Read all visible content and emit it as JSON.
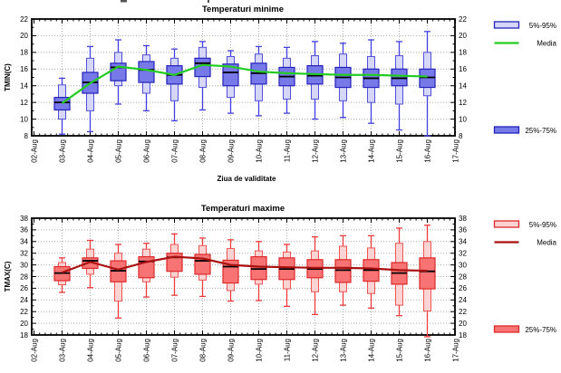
{
  "page": {
    "background": "#ffffff"
  },
  "chart_data": [
    {
      "type": "boxplot",
      "title": "Temperaturi minime",
      "ylabel": "TMIN(C)",
      "xlabel": "Ziua de validitate",
      "ylim": [
        8,
        22
      ],
      "ytick_step": 2,
      "grid": true,
      "legend_position": "right",
      "x_axis_labels": [
        "02-Aug",
        "03-Aug",
        "04-Aug",
        "05-Aug",
        "06-Aug",
        "07-Aug",
        "08-Aug",
        "09-Aug",
        "10-Aug",
        "11-Aug",
        "12-Aug",
        "13-Aug",
        "14-Aug",
        "15-Aug",
        "16-Aug",
        "17-Aug"
      ],
      "legend": {
        "outer_box": "5%-95%",
        "mean_line": "Media",
        "inner_box": "25%-75%"
      },
      "colors": {
        "title": "#1a1aee",
        "outer_fill": "#d6d6f8",
        "outer_edge": "#5151d8",
        "inner_fill": "#7879e8",
        "inner_edge": "#2323bb",
        "whisker": "#4040e0",
        "median": "#000000",
        "mean": "#22cc22"
      },
      "boxes": [
        {
          "date": "03-Aug",
          "whisker_low": 8.2,
          "p5": 10.0,
          "p25": 11.1,
          "median": 12.0,
          "p75": 12.6,
          "p95": 14.1,
          "whisker_high": 14.9,
          "mean": 11.9
        },
        {
          "date": "04-Aug",
          "whisker_low": 8.5,
          "p5": 11.0,
          "p25": 13.1,
          "median": 14.4,
          "p75": 15.6,
          "p95": 17.3,
          "whisker_high": 18.7,
          "mean": 14.3
        },
        {
          "date": "05-Aug",
          "whisker_low": 11.8,
          "p5": 14.0,
          "p25": 14.6,
          "median": 16.2,
          "p75": 16.7,
          "p95": 18.0,
          "whisker_high": 19.5,
          "mean": 16.3
        },
        {
          "date": "06-Aug",
          "whisker_low": 11.0,
          "p5": 13.1,
          "p25": 14.4,
          "median": 15.9,
          "p75": 16.9,
          "p95": 17.7,
          "whisker_high": 18.8,
          "mean": 15.9
        },
        {
          "date": "07-Aug",
          "whisker_low": 9.8,
          "p5": 12.2,
          "p25": 14.2,
          "median": 15.3,
          "p75": 16.4,
          "p95": 17.3,
          "whisker_high": 18.4,
          "mean": 15.3
        },
        {
          "date": "08-Aug",
          "whisker_low": 11.1,
          "p5": 13.8,
          "p25": 15.1,
          "median": 16.7,
          "p75": 17.3,
          "p95": 18.6,
          "whisker_high": 19.3,
          "mean": 16.5
        },
        {
          "date": "09-Aug",
          "whisker_low": 10.7,
          "p5": 12.6,
          "p25": 14.0,
          "median": 15.6,
          "p75": 16.6,
          "p95": 17.5,
          "whisker_high": 18.2,
          "mean": 16.3
        },
        {
          "date": "10-Aug",
          "whisker_low": 10.4,
          "p5": 12.2,
          "p25": 14.2,
          "median": 15.5,
          "p75": 16.7,
          "p95": 17.8,
          "whisker_high": 18.7,
          "mean": 15.7
        },
        {
          "date": "11-Aug",
          "whisker_low": 10.7,
          "p5": 12.4,
          "p25": 14.0,
          "median": 15.1,
          "p75": 16.2,
          "p95": 17.3,
          "whisker_high": 18.6,
          "mean": 15.5
        },
        {
          "date": "12-Aug",
          "whisker_low": 10.0,
          "p5": 12.4,
          "p25": 14.2,
          "median": 15.2,
          "p75": 16.4,
          "p95": 17.6,
          "whisker_high": 19.3,
          "mean": 15.4
        },
        {
          "date": "13-Aug",
          "whisker_low": 10.2,
          "p5": 12.2,
          "p25": 13.8,
          "median": 15.0,
          "p75": 16.2,
          "p95": 17.8,
          "whisker_high": 19.1,
          "mean": 15.3
        },
        {
          "date": "14-Aug",
          "whisker_low": 9.5,
          "p5": 12.0,
          "p25": 13.8,
          "median": 14.9,
          "p75": 16.0,
          "p95": 17.5,
          "whisker_high": 19.5,
          "mean": 15.3
        },
        {
          "date": "15-Aug",
          "whisker_low": 8.7,
          "p5": 11.8,
          "p25": 14.0,
          "median": 14.9,
          "p75": 16.0,
          "p95": 17.6,
          "whisker_high": 19.3,
          "mean": 15.2
        },
        {
          "date": "16-Aug",
          "whisker_low": 8.0,
          "p5": 12.8,
          "p25": 13.8,
          "median": 15.0,
          "p75": 16.0,
          "p95": 18.0,
          "whisker_high": 20.5,
          "mean": 15.1
        }
      ]
    },
    {
      "type": "boxplot",
      "title": "Temperaturi maxime",
      "ylabel": "TMAX(C)",
      "xlabel": "",
      "ylim": [
        18,
        38
      ],
      "ytick_step": 2,
      "grid": true,
      "legend_position": "right",
      "x_axis_labels": [
        "02-Aug",
        "03-Aug",
        "04-Aug",
        "05-Aug",
        "06-Aug",
        "07-Aug",
        "08-Aug",
        "09-Aug",
        "10-Aug",
        "11-Aug",
        "12-Aug",
        "13-Aug",
        "14-Aug",
        "15-Aug",
        "16-Aug",
        "17-Aug"
      ],
      "legend": {
        "outer_box": "5%-95%",
        "mean_line": "Media",
        "inner_box": "25%-75%"
      },
      "colors": {
        "title": "#ee1a1a",
        "outer_fill": "#fcd3d3",
        "outer_edge": "#ee5555",
        "inner_fill": "#f87474",
        "inner_edge": "#dd2929",
        "whisker": "#ee3b3b",
        "median": "#000000",
        "mean": "#aa1111"
      },
      "boxes": [
        {
          "date": "03-Aug",
          "whisker_low": 25.3,
          "p5": 26.6,
          "p25": 27.3,
          "median": 28.6,
          "p75": 29.7,
          "p95": 30.4,
          "whisker_high": 31.2,
          "mean": 28.7
        },
        {
          "date": "04-Aug",
          "whisker_low": 26.1,
          "p5": 28.4,
          "p25": 29.4,
          "median": 30.7,
          "p75": 31.2,
          "p95": 32.7,
          "whisker_high": 34.2,
          "mean": 30.5
        },
        {
          "date": "05-Aug",
          "whisker_low": 20.9,
          "p5": 23.8,
          "p25": 27.1,
          "median": 29.0,
          "p75": 30.7,
          "p95": 32.0,
          "whisker_high": 33.5,
          "mean": 29.2
        },
        {
          "date": "06-Aug",
          "whisker_low": 24.5,
          "p5": 27.1,
          "p25": 27.8,
          "median": 30.6,
          "p75": 31.4,
          "p95": 32.7,
          "whisker_high": 33.7,
          "mean": 30.5
        },
        {
          "date": "07-Aug",
          "whisker_low": 24.8,
          "p5": 27.9,
          "p25": 28.9,
          "median": 31.3,
          "p75": 32.0,
          "p95": 33.5,
          "whisker_high": 35.3,
          "mean": 31.4
        },
        {
          "date": "08-Aug",
          "whisker_low": 24.6,
          "p5": 27.4,
          "p25": 28.4,
          "median": 30.7,
          "p75": 31.8,
          "p95": 33.3,
          "whisker_high": 34.6,
          "mean": 31.1
        },
        {
          "date": "09-Aug",
          "whisker_low": 23.8,
          "p5": 25.6,
          "p25": 26.9,
          "median": 29.7,
          "p75": 30.8,
          "p95": 32.8,
          "whisker_high": 34.3,
          "mean": 30.0
        },
        {
          "date": "10-Aug",
          "whisker_low": 23.9,
          "p5": 26.7,
          "p25": 27.5,
          "median": 29.3,
          "p75": 31.4,
          "p95": 32.4,
          "whisker_high": 34.0,
          "mean": 29.7
        },
        {
          "date": "11-Aug",
          "whisker_low": 22.9,
          "p5": 25.9,
          "p25": 27.5,
          "median": 29.3,
          "p75": 31.2,
          "p95": 32.2,
          "whisker_high": 33.5,
          "mean": 29.6
        },
        {
          "date": "12-Aug",
          "whisker_low": 21.5,
          "p5": 25.4,
          "p25": 27.8,
          "median": 29.3,
          "p75": 30.9,
          "p95": 32.4,
          "whisker_high": 34.8,
          "mean": 29.5
        },
        {
          "date": "13-Aug",
          "whisker_low": 23.1,
          "p5": 25.4,
          "p25": 27.0,
          "median": 29.1,
          "p75": 30.9,
          "p95": 33.2,
          "whisker_high": 35.0,
          "mean": 29.5
        },
        {
          "date": "14-Aug",
          "whisker_low": 22.6,
          "p5": 25.1,
          "p25": 27.2,
          "median": 29.1,
          "p75": 30.9,
          "p95": 32.9,
          "whisker_high": 35.0,
          "mean": 29.4
        },
        {
          "date": "15-Aug",
          "whisker_low": 21.3,
          "p5": 23.1,
          "p25": 26.7,
          "median": 28.6,
          "p75": 30.4,
          "p95": 33.7,
          "whisker_high": 36.3,
          "mean": 29.1
        },
        {
          "date": "16-Aug",
          "whisker_low": 17.7,
          "p5": 22.1,
          "p25": 25.9,
          "median": 28.9,
          "p75": 31.2,
          "p95": 34.0,
          "whisker_high": 36.8,
          "mean": 29.0
        }
      ]
    }
  ]
}
